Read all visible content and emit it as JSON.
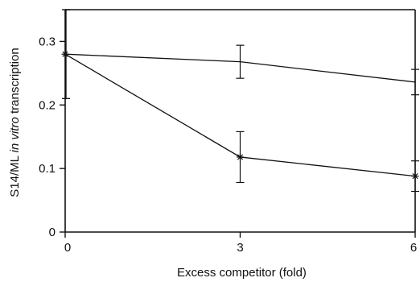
{
  "chart_data": {
    "type": "line",
    "title": "",
    "xlabel": "Excess competitor (fold)",
    "ylabel_prefix": "S14/ML ",
    "ylabel_italic": "in vitro",
    "ylabel_suffix": " transcription",
    "x_ticks": [
      0,
      3,
      6
    ],
    "x_tick_labels": [
      "0",
      "3",
      "6"
    ],
    "y_ticks": [
      0,
      0.1,
      0.2,
      0.3
    ],
    "y_tick_labels": [
      "0",
      "0.1",
      "0.2",
      "0.3"
    ],
    "xlim": [
      0,
      6
    ],
    "ylim": [
      0,
      0.35
    ],
    "grid": false,
    "series": [
      {
        "marker": "none",
        "x": [
          0,
          3,
          6
        ],
        "y": [
          0.28,
          0.268,
          0.236
        ],
        "err_low": [
          0.21,
          0.242,
          0.216
        ],
        "err_high": [
          0.35,
          0.294,
          0.256
        ]
      },
      {
        "marker": "asterisk",
        "x": [
          0,
          3,
          6
        ],
        "y": [
          0.28,
          0.118,
          0.088
        ],
        "err_low": [
          0.21,
          0.078,
          0.064
        ],
        "err_high": [
          0.35,
          0.158,
          0.112
        ]
      }
    ]
  }
}
